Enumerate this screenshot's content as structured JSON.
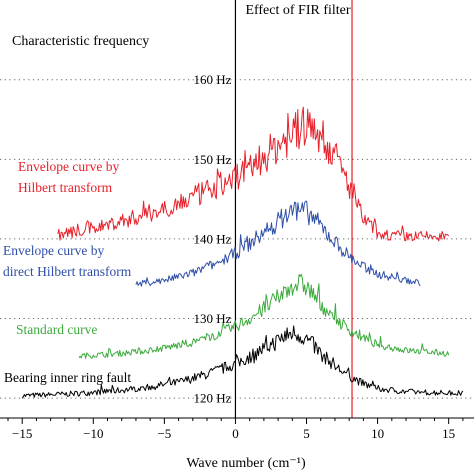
{
  "chart_data": {
    "type": "line",
    "title": "Effect of FIR filter",
    "corner_label": "Characteristic frequency",
    "xlabel": "Wave number (cm⁻¹)",
    "ylabel": "",
    "xlim": [
      -16,
      16.5
    ],
    "ylim": [
      117.5,
      167
    ],
    "x_ticks": [
      -15,
      -10,
      -5,
      0,
      5,
      10,
      15
    ],
    "x_tick_labels": [
      "−15",
      "−10",
      "−5",
      "0",
      "5",
      "10",
      "15"
    ],
    "y_ticks": [
      120,
      130,
      140,
      150,
      160
    ],
    "y_tick_labels": [
      "120 Hz",
      "130 Hz",
      "140 Hz",
      "150 Hz",
      "160 Hz"
    ],
    "grid": {
      "horizontal_dotted": true
    },
    "reference_lines": [
      {
        "orientation": "vertical",
        "x": 0,
        "color": "#000000"
      },
      {
        "orientation": "vertical",
        "x": 8.2,
        "color": "#e8202a"
      }
    ],
    "series": [
      {
        "name": "Bearing inner ring fault",
        "color": "#000000",
        "x": [
          -15,
          -12,
          -10,
          -8,
          -6,
          -4,
          -2,
          0,
          1,
          2,
          3,
          3.5,
          4,
          4.5,
          5,
          5.5,
          6,
          7,
          8,
          9,
          10,
          12,
          14,
          16
        ],
        "y": [
          120.3,
          120.5,
          120.7,
          121.0,
          121.4,
          122.0,
          123.0,
          124.3,
          125.2,
          126.2,
          127.2,
          127.8,
          128.2,
          128.0,
          127.4,
          126.6,
          125.6,
          124.0,
          122.8,
          121.8,
          121.2,
          120.8,
          120.7,
          120.6
        ],
        "noise": 0.9
      },
      {
        "name": "Standard curve",
        "color": "#3daa3d",
        "x": [
          -11,
          -9,
          -7,
          -5,
          -3,
          -1,
          0,
          1,
          2,
          3,
          3.5,
          4,
          4.5,
          5,
          5.5,
          6,
          7,
          8,
          9,
          10,
          12,
          15
        ],
        "y": [
          125.3,
          125.5,
          125.8,
          126.3,
          127.0,
          128.2,
          129.0,
          130.0,
          131.2,
          132.6,
          133.4,
          134.2,
          134.4,
          134.0,
          133.0,
          131.8,
          130.0,
          128.6,
          127.5,
          126.7,
          126.0,
          125.6
        ],
        "noise": 1.0
      },
      {
        "name": "Envelope curve by direct Hilbert transform",
        "color": "#2f4fa8",
        "x": [
          -7,
          -5,
          -3,
          -1,
          0,
          1,
          2,
          3,
          3.5,
          4,
          4.5,
          5,
          5.5,
          6,
          7,
          8,
          9,
          10,
          12,
          13
        ],
        "y": [
          134.3,
          134.8,
          135.7,
          137.2,
          138.2,
          139.4,
          140.8,
          142.2,
          142.9,
          143.5,
          143.8,
          143.4,
          142.6,
          141.6,
          139.6,
          137.8,
          136.5,
          135.6,
          134.8,
          134.5
        ],
        "noise": 1.1
      },
      {
        "name": "Envelope curve by Hilbert transform",
        "color": "#e8202a",
        "x": [
          -12.5,
          -11,
          -9,
          -7,
          -5,
          -3,
          -1,
          0,
          1,
          2,
          3,
          4,
          4.5,
          5,
          5.5,
          6,
          7,
          8,
          9,
          10,
          11,
          13,
          15
        ],
        "y": [
          140.5,
          141.0,
          141.8,
          142.7,
          143.8,
          145.2,
          146.8,
          147.8,
          149.0,
          150.3,
          151.8,
          153.2,
          153.8,
          154.2,
          153.8,
          153.0,
          150.5,
          146.6,
          142.5,
          140.8,
          140.4,
          140.3,
          140.3
        ],
        "noise": 2.0
      }
    ],
    "annotations": [
      {
        "text": "Envelope curve by",
        "color": "#e8202a",
        "series": "Envelope curve by Hilbert transform"
      },
      {
        "text": "Hilbert transform",
        "color": "#e8202a",
        "series": "Envelope curve by Hilbert transform"
      },
      {
        "text": "Envelope curve by",
        "color": "#2f4fa8",
        "series": "Envelope curve by direct Hilbert transform"
      },
      {
        "text": "direct Hilbert transform",
        "color": "#2f4fa8",
        "series": "Envelope curve by direct Hilbert transform"
      },
      {
        "text": "Standard curve",
        "color": "#3daa3d",
        "series": "Standard curve"
      },
      {
        "text": "Bearing inner ring fault",
        "color": "#000000",
        "series": "Bearing inner ring fault"
      }
    ]
  }
}
